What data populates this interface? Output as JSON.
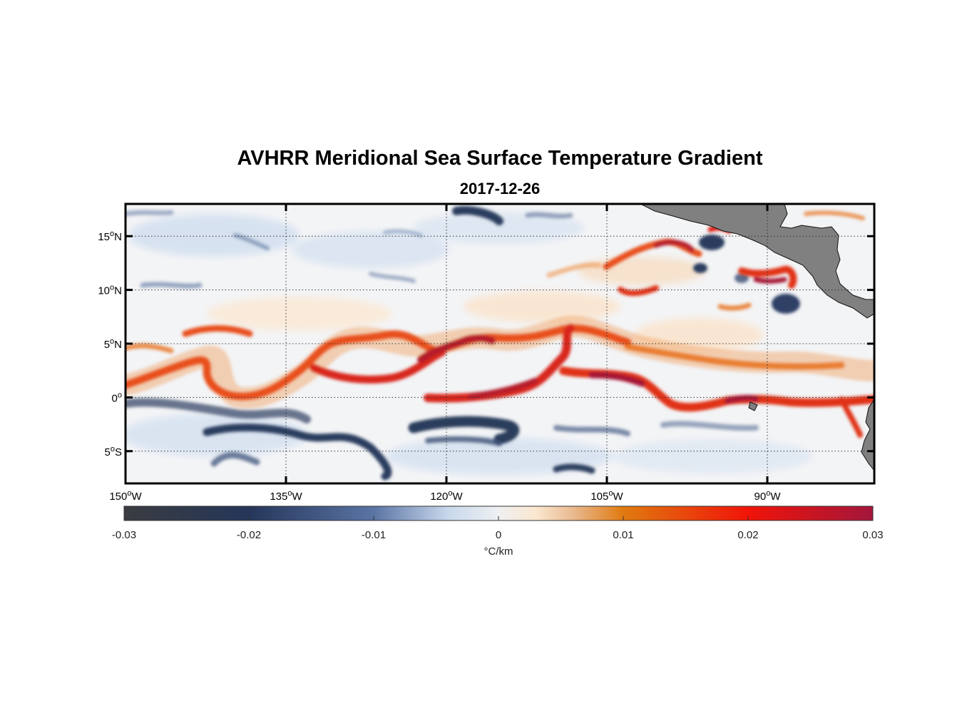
{
  "title": "AVHRR Meridional Sea Surface Temperature Gradient",
  "subtitle": "2017-12-26",
  "map": {
    "lon_range": [
      -150,
      -80
    ],
    "lat_range": [
      -8,
      18
    ],
    "lon_ticks": [
      {
        "value": -150,
        "num": "150",
        "sup": "o",
        "hemi": "W"
      },
      {
        "value": -135,
        "num": "135",
        "sup": "o",
        "hemi": "W"
      },
      {
        "value": -120,
        "num": "120",
        "sup": "o",
        "hemi": "W"
      },
      {
        "value": -105,
        "num": "105",
        "sup": "o",
        "hemi": "W"
      },
      {
        "value": -90,
        "num": "90",
        "sup": "o",
        "hemi": "W"
      }
    ],
    "lat_ticks": [
      {
        "value": 15,
        "num": "15",
        "sup": "o",
        "hemi": "N"
      },
      {
        "value": 10,
        "num": "10",
        "sup": "o",
        "hemi": "N"
      },
      {
        "value": 5,
        "num": "5",
        "sup": "o",
        "hemi": "N"
      },
      {
        "value": 0,
        "num": "0",
        "sup": "o",
        "hemi": ""
      },
      {
        "value": -5,
        "num": "5",
        "sup": "o",
        "hemi": "S"
      }
    ],
    "land_color": "#808080",
    "front_colors": {
      "strong": "#c81e2a",
      "mid": "#e8501a",
      "weak": "#f0a060",
      "cold": "#2b3d5e",
      "cold_light": "#8fa6c8"
    }
  },
  "colorbar": {
    "range": [
      -0.03,
      0.03
    ],
    "tick_values": [
      -0.03,
      -0.02,
      -0.01,
      0,
      0.01,
      0.02,
      0.03
    ],
    "tick_labels": [
      "-0.03",
      "-0.02",
      "-0.01",
      "0",
      "0.01",
      "0.02",
      "0.03"
    ],
    "label": "°C/km",
    "color_stops": [
      {
        "value": -0.03,
        "color": "#3a3c40"
      },
      {
        "value": -0.02,
        "color": "#25365a"
      },
      {
        "value": -0.01,
        "color": "#5a74a4"
      },
      {
        "value": -0.004,
        "color": "#c9d8ec"
      },
      {
        "value": 0,
        "color": "#eef0f2"
      },
      {
        "value": 0.003,
        "color": "#fbe7cf"
      },
      {
        "value": 0.006,
        "color": "#e9b98f"
      },
      {
        "value": 0.01,
        "color": "#e07a10"
      },
      {
        "value": 0.02,
        "color": "#f01408"
      },
      {
        "value": 0.03,
        "color": "#a3163c"
      }
    ]
  }
}
